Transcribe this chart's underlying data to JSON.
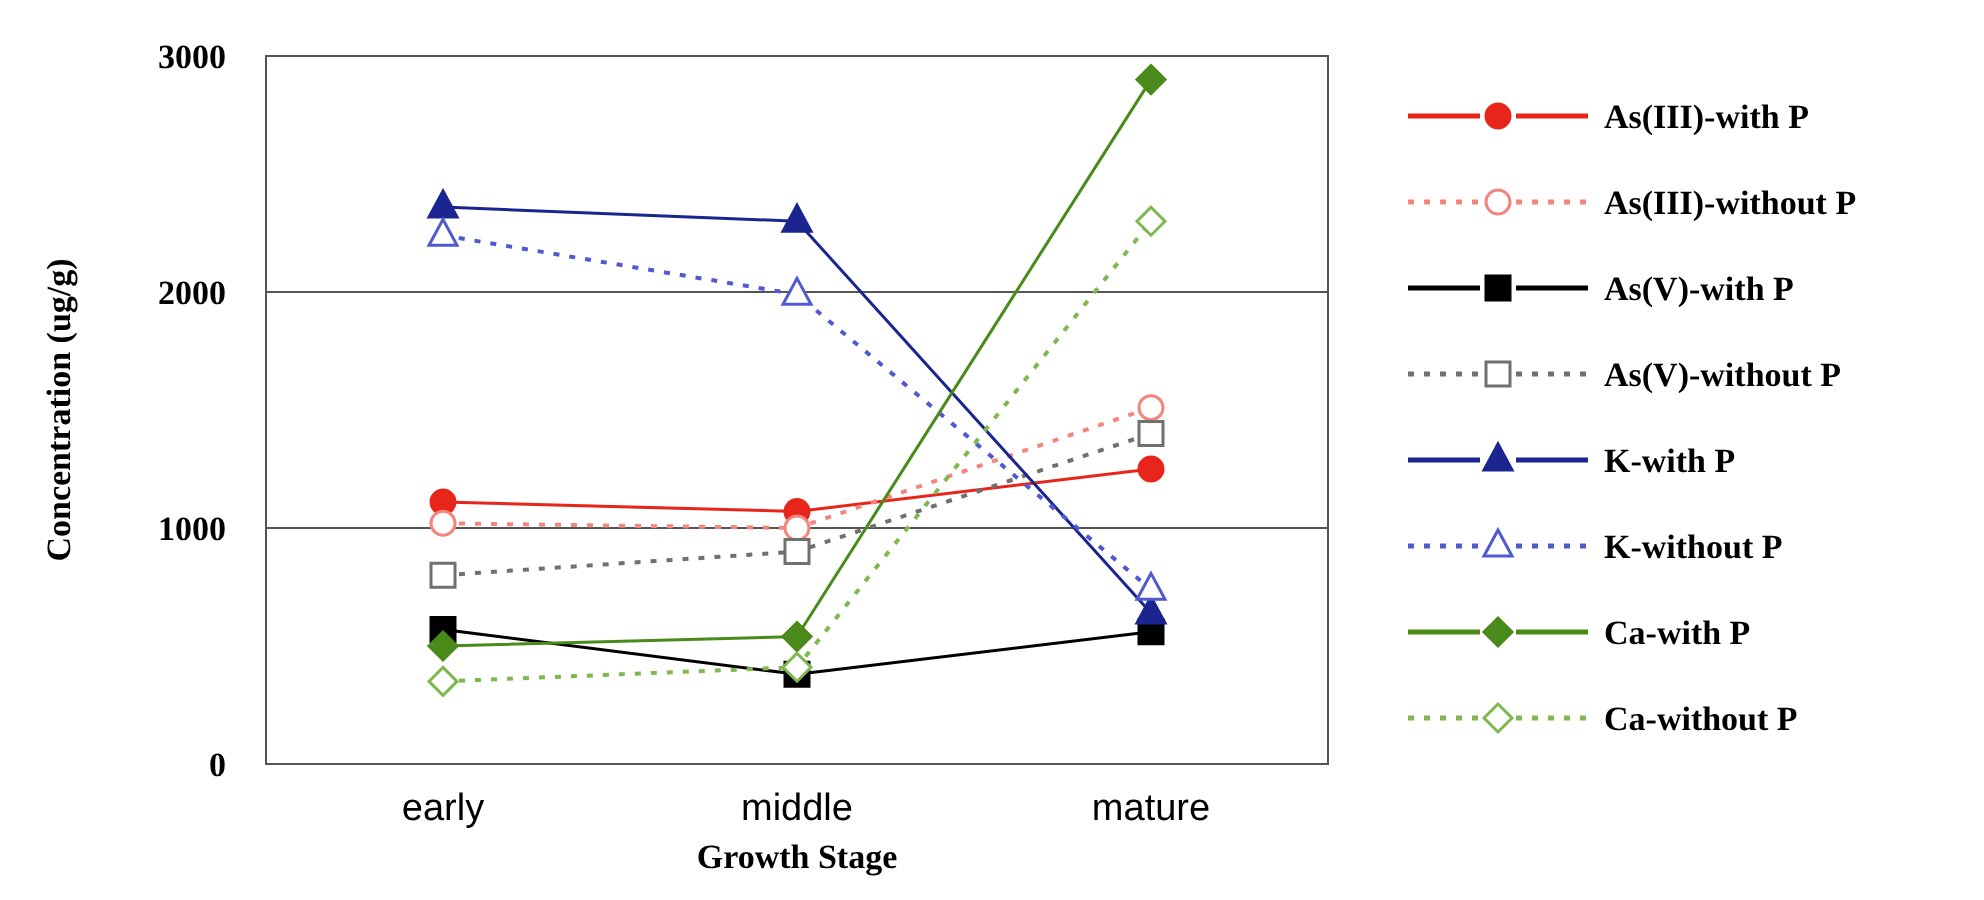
{
  "chart_data": {
    "type": "line",
    "xlabel": "Growth Stage",
    "ylabel": "Concentration (ug/g)",
    "categories": [
      "early",
      "middle",
      "mature"
    ],
    "ylim": [
      0,
      3000
    ],
    "yticks": [
      0,
      1000,
      2000,
      3000
    ],
    "grid": "y",
    "legend": "right",
    "series": [
      {
        "name": "As(III)-with P",
        "color": "#e8251b",
        "values": [
          1110,
          1070,
          1250
        ],
        "marker": "circle",
        "line_style": "solid"
      },
      {
        "name": "As(III)-without P",
        "color": "#f4857c",
        "values": [
          1020,
          1000,
          1510
        ],
        "marker": "circle",
        "line_style": "dotted"
      },
      {
        "name": "As(V)-with P",
        "color": "#000000",
        "values": [
          570,
          380,
          560
        ],
        "marker": "square",
        "line_style": "solid"
      },
      {
        "name": "As(V)-without P",
        "color": "#707070",
        "values": [
          800,
          900,
          1400
        ],
        "marker": "square",
        "line_style": "dotted"
      },
      {
        "name": "K-with P",
        "color": "#1a2590",
        "values": [
          2360,
          2300,
          640
        ],
        "marker": "triangle",
        "line_style": "solid"
      },
      {
        "name": "K-without P",
        "color": "#4f5ad0",
        "values": [
          2240,
          1990,
          740
        ],
        "marker": "triangle",
        "line_style": "dotted"
      },
      {
        "name": "Ca-with P",
        "color": "#4a8a1a",
        "values": [
          500,
          540,
          2900
        ],
        "marker": "diamond",
        "line_style": "solid"
      },
      {
        "name": "Ca-without P",
        "color": "#80b850",
        "values": [
          350,
          410,
          2300
        ],
        "marker": "diamond",
        "line_style": "dotted"
      }
    ]
  }
}
